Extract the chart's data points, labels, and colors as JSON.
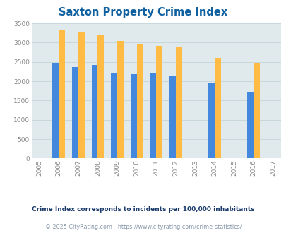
{
  "title": "Saxton Property Crime Index",
  "title_color": "#1060a0",
  "years": [
    2005,
    2006,
    2007,
    2008,
    2009,
    2010,
    2011,
    2012,
    2013,
    2014,
    2015,
    2016,
    2017
  ],
  "data_years": [
    2006,
    2007,
    2008,
    2009,
    2010,
    2011,
    2012,
    2014,
    2016
  ],
  "saxton": [
    0,
    0,
    0,
    0,
    0,
    0,
    0,
    0,
    0
  ],
  "pennsylvania": [
    2480,
    2370,
    2430,
    2210,
    2180,
    2225,
    2150,
    1950,
    1710
  ],
  "national": [
    3340,
    3260,
    3210,
    3040,
    2960,
    2910,
    2870,
    2600,
    2470
  ],
  "saxton_color": "#88bb22",
  "pennsylvania_color": "#4488dd",
  "national_color": "#ffbb44",
  "bg_color": "#e0eaec",
  "ylim": [
    0,
    3500
  ],
  "yticks": [
    0,
    500,
    1000,
    1500,
    2000,
    2500,
    3000,
    3500
  ],
  "bar_width": 0.32,
  "grid_color": "#c8d8da",
  "footnote1": "Crime Index corresponds to incidents per 100,000 inhabitants",
  "footnote2": "© 2025 CityRating.com - https://www.cityrating.com/crime-statistics/",
  "footnote1_color": "#1a3a6a",
  "footnote2_color": "#8899aa"
}
